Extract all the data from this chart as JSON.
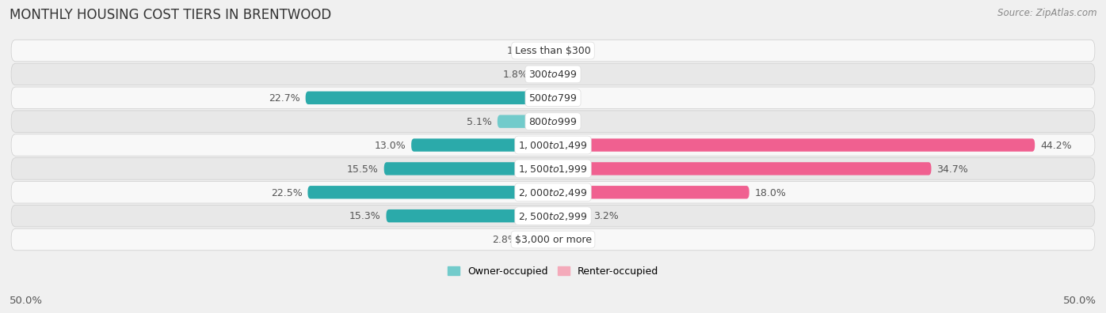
{
  "title": "MONTHLY HOUSING COST TIERS IN BRENTWOOD",
  "source": "Source: ZipAtlas.com",
  "categories": [
    "Less than $300",
    "$300 to $499",
    "$500 to $799",
    "$800 to $999",
    "$1,000 to $1,499",
    "$1,500 to $1,999",
    "$2,000 to $2,499",
    "$2,500 to $2,999",
    "$3,000 or more"
  ],
  "owner_values": [
    1.4,
    1.8,
    22.7,
    5.1,
    13.0,
    15.5,
    22.5,
    15.3,
    2.8
  ],
  "renter_values": [
    0.0,
    0.0,
    0.0,
    0.0,
    44.2,
    34.7,
    18.0,
    3.2,
    0.0
  ],
  "owner_color_light": "#72CBCB",
  "owner_color_dark": "#2BAAAA",
  "renter_color_light": "#F4AABA",
  "renter_color_dark": "#F06090",
  "owner_label": "Owner-occupied",
  "renter_label": "Renter-occupied",
  "xlim": 50.0,
  "background_color": "#f0f0f0",
  "row_bg_light": "#f8f8f8",
  "row_bg_dark": "#e8e8e8",
  "title_fontsize": 12,
  "source_fontsize": 8.5,
  "label_fontsize": 9,
  "value_fontsize": 9,
  "bar_height": 0.55,
  "axis_label_fontsize": 9.5,
  "legend_fontsize": 9
}
